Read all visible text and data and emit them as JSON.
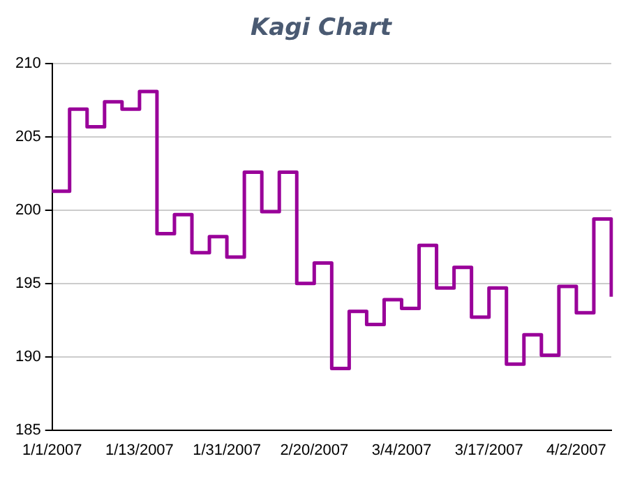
{
  "chart_data": {
    "type": "step",
    "title": "Kagi Chart",
    "categories": [
      "1/1/2007",
      null,
      null,
      null,
      null,
      "1/13/2007",
      null,
      null,
      null,
      null,
      "1/31/2007",
      null,
      null,
      null,
      null,
      "2/20/2007",
      null,
      null,
      null,
      null,
      "3/4/2007",
      null,
      null,
      null,
      null,
      "3/17/2007",
      null,
      null,
      null,
      null,
      "4/2/2007",
      null,
      null
    ],
    "series": [
      {
        "color": "#990099",
        "values": [
          201.3,
          206.9,
          205.7,
          207.4,
          206.9,
          208.1,
          198.4,
          199.7,
          197.1,
          198.2,
          196.8,
          202.6,
          199.9,
          202.6,
          195.0,
          196.4,
          189.2,
          193.1,
          192.2,
          193.9,
          193.3,
          197.6,
          194.7,
          196.1,
          192.7,
          194.7,
          189.5,
          191.5,
          190.1,
          194.8,
          193.0,
          199.4,
          194.1
        ]
      }
    ],
    "ylim": [
      185,
      210
    ],
    "yticks": [
      185,
      190,
      195,
      200,
      205,
      210
    ],
    "grid": "y",
    "legend": false
  }
}
